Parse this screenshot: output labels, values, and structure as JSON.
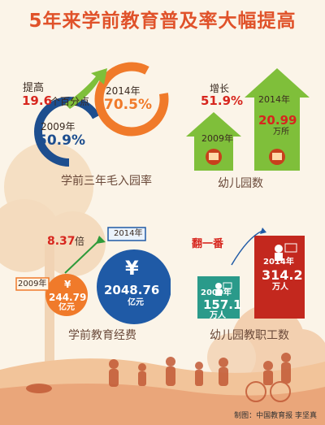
{
  "title": "5年来学前教育普及率大幅提高",
  "credit": "制图：中国教育报  李坚真",
  "colors": {
    "red": "#d7261e",
    "blue": "#1d4e8f",
    "orange": "#f07a2a",
    "green": "#7fbf3a",
    "brown": "#8a3c1a"
  },
  "chart_data": [
    {
      "type": "donut",
      "caption": "学前三年毛入园率",
      "series": [
        {
          "year": "2009年",
          "value_label": "50.9%",
          "value": 50.9
        },
        {
          "year": "2014年",
          "value_label": "70.5%",
          "value": 70.5
        }
      ],
      "increase": {
        "prefix": "提高",
        "value": "19.6",
        "unit": "个百分点"
      }
    },
    {
      "type": "bar",
      "caption": "幼儿园数",
      "categories": [
        "2009年",
        "2014年"
      ],
      "values": [
        null,
        20.99
      ],
      "value_label_2014": "20.99",
      "unit": "万所",
      "increase": {
        "prefix": "增长",
        "value": "51.9%"
      }
    },
    {
      "type": "bubble",
      "caption": "学前教育经费",
      "series": [
        {
          "year": "2009年",
          "value_label": "244.79",
          "value": 244.79,
          "unit": "亿元"
        },
        {
          "year": "2014年",
          "value_label": "2048.76",
          "value": 2048.76,
          "unit": "亿元"
        }
      ],
      "currency_symbol": "¥",
      "increase": {
        "value": "8.37",
        "suffix": "倍"
      }
    },
    {
      "type": "bar",
      "caption": "幼儿园教职工数",
      "categories": [
        "2009年",
        "2014年"
      ],
      "values": [
        157.1,
        314.2
      ],
      "value_labels": [
        "157.1",
        "314.2"
      ],
      "unit": "万人",
      "increase": {
        "value": "翻一番"
      }
    }
  ]
}
